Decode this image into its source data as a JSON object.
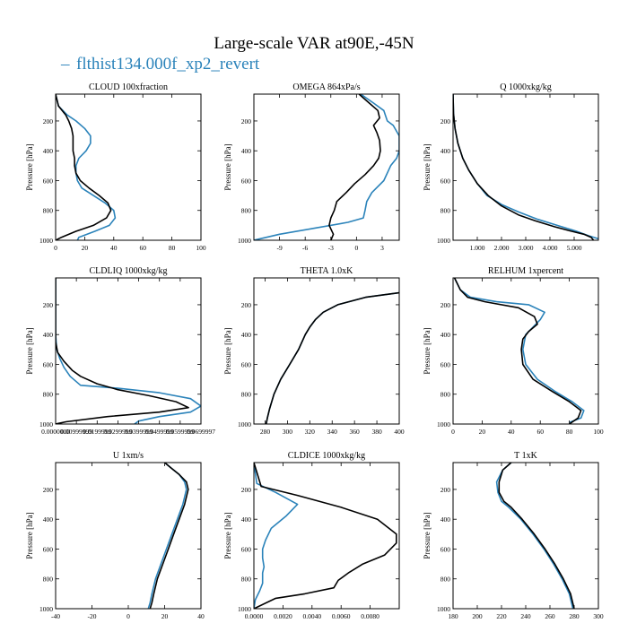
{
  "figure": {
    "title": "Large-scale VAR at90E,-45N",
    "legend": [
      {
        "name": "flthist134.000f_xp2_revert",
        "marker": "–",
        "color": "#2b83ba"
      }
    ],
    "series_colors": {
      "flthist134.000f_xp2_revert": "#2b83ba",
      "black": "#000000"
    }
  },
  "chart_data": [
    {
      "type": "line",
      "title": "CLOUD  100xfraction",
      "ylabel": "Pressure [hPa]",
      "xlim": [
        0,
        100
      ],
      "ylim": [
        1000,
        20
      ],
      "yticks": [
        200,
        400,
        600,
        800,
        1000
      ],
      "xticks": [
        0,
        20,
        40,
        60,
        80,
        100
      ],
      "xtick_labels": [
        "0",
        "20",
        "40",
        "60",
        "80",
        "100"
      ],
      "series": [
        {
          "name": "flthist134.000f_xp2_revert",
          "color": "#2b83ba",
          "x": [
            0,
            2,
            8,
            14,
            20,
            24,
            24,
            21,
            16,
            14,
            14,
            15,
            18,
            26,
            34,
            40,
            41,
            37,
            27,
            16,
            15
          ],
          "y": [
            20,
            100,
            160,
            200,
            250,
            300,
            350,
            400,
            450,
            500,
            550,
            600,
            650,
            700,
            750,
            800,
            850,
            900,
            940,
            980,
            1000
          ]
        },
        {
          "name": "",
          "color": "#000000",
          "x": [
            0,
            2,
            7,
            9,
            11,
            12,
            12,
            12,
            13,
            13,
            14,
            17,
            23,
            30,
            36,
            38,
            35,
            26,
            14,
            4,
            0
          ],
          "y": [
            20,
            100,
            160,
            200,
            250,
            300,
            350,
            400,
            450,
            500,
            550,
            600,
            650,
            700,
            750,
            800,
            850,
            900,
            940,
            980,
            1000
          ]
        }
      ]
    },
    {
      "type": "line",
      "title": "OMEGA  864xPa/s",
      "ylabel": "Pressure [hPa]",
      "xlim": [
        -12,
        5
      ],
      "ylim": [
        1000,
        20
      ],
      "yticks": [
        200,
        400,
        600,
        800,
        1000
      ],
      "xticks": [
        -9,
        -6,
        -3,
        0,
        3
      ],
      "xtick_labels": [
        "-9",
        "-6",
        "-3",
        "0",
        "3"
      ],
      "series": [
        {
          "name": "flthist134.000f_xp2_revert",
          "color": "#2b83ba",
          "x": [
            0.5,
            2.0,
            3.2,
            3.6,
            4.3,
            5.0,
            5.0,
            5.0,
            4.7,
            4.0,
            3.2,
            1.8,
            1.2,
            1.0,
            0.8,
            -1.0,
            -5.0,
            -9.0,
            -12.0
          ],
          "y": [
            20,
            80,
            130,
            200,
            230,
            300,
            350,
            400,
            450,
            500,
            600,
            680,
            740,
            800,
            850,
            880,
            920,
            960,
            1000
          ]
        },
        {
          "name": "",
          "color": "#000000",
          "x": [
            0.3,
            1.5,
            2.5,
            2.7,
            2.0,
            2.4,
            2.7,
            2.8,
            2.6,
            2.0,
            1.0,
            -0.2,
            -1.2,
            -2.3,
            -2.6,
            -3.0,
            -3.2,
            -2.7,
            -3.0
          ],
          "y": [
            20,
            80,
            130,
            180,
            230,
            280,
            330,
            400,
            450,
            500,
            560,
            620,
            680,
            740,
            800,
            850,
            900,
            960,
            1000
          ]
        }
      ]
    },
    {
      "type": "line",
      "title": "Q  1000xkg/kg",
      "ylabel": "Pressure [hPa]",
      "xlim": [
        0,
        6000
      ],
      "ylim": [
        1000,
        20
      ],
      "yticks": [
        200,
        400,
        600,
        800,
        1000
      ],
      "xticks": [
        1000,
        2000,
        3000,
        4000,
        5000
      ],
      "xtick_labels": [
        "1.000",
        "2.000",
        "3.000",
        "4.000",
        "5.000"
      ],
      "series": [
        {
          "name": "flthist134.000f_xp2_revert",
          "color": "#2b83ba",
          "x": [
            0,
            20,
            80,
            200,
            400,
            650,
            1000,
            1400,
            2000,
            2700,
            3500,
            4300,
            5100,
            5600,
            6000
          ],
          "y": [
            20,
            150,
            250,
            350,
            450,
            530,
            620,
            700,
            760,
            810,
            860,
            900,
            940,
            970,
            990
          ]
        },
        {
          "name": "",
          "color": "#000000",
          "x": [
            0,
            20,
            80,
            200,
            400,
            650,
            1000,
            1450,
            2000,
            2700,
            3400,
            4200,
            4900,
            5400,
            5700,
            5800
          ],
          "y": [
            20,
            150,
            250,
            350,
            450,
            530,
            620,
            700,
            770,
            830,
            870,
            910,
            940,
            960,
            980,
            1000
          ]
        }
      ]
    },
    {
      "type": "line",
      "title": "CLDLIQ  1000xkg/kg",
      "ylabel": "Pressure [hPa]",
      "xlim": [
        0,
        0.07
      ],
      "ylim": [
        1000,
        20
      ],
      "yticks": [
        200,
        400,
        600,
        800,
        1000
      ],
      "xticks": [
        0,
        0.01,
        0.02,
        0.03,
        0.04,
        0.05,
        0.06,
        0.07
      ],
      "xtick_labels": [
        "0.0000000",
        "0.00999999",
        "0.0199999",
        "0.0299999",
        "0.0399999",
        "0.0499999",
        "0.0599999",
        "0.0699997"
      ],
      "series": [
        {
          "name": "flthist134.000f_xp2_revert",
          "color": "#2b83ba",
          "x": [
            0,
            0,
            0.0005,
            0.002,
            0.004,
            0.007,
            0.012,
            0.03,
            0.05,
            0.065,
            0.07,
            0.065,
            0.05,
            0.04,
            0.038
          ],
          "y": [
            20,
            400,
            500,
            560,
            620,
            680,
            740,
            760,
            790,
            830,
            880,
            920,
            950,
            980,
            1000
          ]
        },
        {
          "name": "",
          "color": "#000000",
          "x": [
            0,
            0,
            0.001,
            0.004,
            0.008,
            0.012,
            0.02,
            0.03,
            0.045,
            0.058,
            0.064,
            0.05,
            0.025,
            0.005,
            0
          ],
          "y": [
            20,
            450,
            520,
            580,
            640,
            680,
            730,
            770,
            810,
            850,
            890,
            920,
            950,
            985,
            1000
          ]
        }
      ]
    },
    {
      "type": "line",
      "title": "THETA  1.0xK",
      "ylabel": "Pressure [hPa]",
      "xlim": [
        270,
        400
      ],
      "ylim": [
        1000,
        20
      ],
      "yticks": [
        200,
        400,
        600,
        800,
        1000
      ],
      "xticks": [
        280,
        300,
        320,
        340,
        360,
        380,
        400
      ],
      "xtick_labels": [
        "280",
        "300",
        "320",
        "340",
        "360",
        "380",
        "400"
      ],
      "series": [
        {
          "name": "flthist134.000f_xp2_revert",
          "color": "#2b83ba",
          "x": [
            400,
            370,
            345,
            332,
            325,
            320,
            316,
            310,
            302,
            294,
            288,
            284,
            282,
            281
          ],
          "y": [
            120,
            150,
            200,
            250,
            300,
            350,
            400,
            500,
            600,
            700,
            800,
            900,
            960,
            1000
          ]
        },
        {
          "name": "",
          "color": "#000000",
          "x": [
            400,
            370,
            345,
            332,
            325,
            320,
            316,
            310,
            302,
            294,
            288,
            284,
            282,
            281
          ],
          "y": [
            120,
            150,
            200,
            250,
            300,
            350,
            400,
            500,
            600,
            700,
            800,
            900,
            960,
            1000
          ]
        }
      ]
    },
    {
      "type": "line",
      "title": "RELHUM  1xpercent",
      "ylabel": "Pressure [hPa]",
      "xlim": [
        0,
        100
      ],
      "ylim": [
        1000,
        20
      ],
      "yticks": [
        200,
        400,
        600,
        800,
        1000
      ],
      "xticks": [
        0,
        20,
        40,
        60,
        80,
        100
      ],
      "xtick_labels": [
        "0",
        "20",
        "40",
        "60",
        "80",
        "100"
      ],
      "series": [
        {
          "name": "flthist134.000f_xp2_revert",
          "color": "#2b83ba",
          "x": [
            1,
            5,
            12,
            30,
            52,
            63,
            60,
            55,
            50,
            48,
            50,
            58,
            70,
            82,
            90,
            88,
            80
          ],
          "y": [
            20,
            100,
            150,
            180,
            200,
            250,
            300,
            350,
            400,
            500,
            600,
            700,
            780,
            850,
            910,
            960,
            990
          ]
        },
        {
          "name": "",
          "color": "#000000",
          "x": [
            1,
            5,
            10,
            22,
            45,
            56,
            58,
            52,
            48,
            47,
            48,
            55,
            68,
            80,
            88,
            86,
            80
          ],
          "y": [
            20,
            100,
            150,
            180,
            220,
            280,
            330,
            380,
            430,
            500,
            600,
            700,
            780,
            850,
            910,
            960,
            1000
          ]
        }
      ]
    },
    {
      "type": "line",
      "title": "U  1xm/s",
      "ylabel": "Pressure [hPa]",
      "xlim": [
        -40,
        40
      ],
      "ylim": [
        1000,
        20
      ],
      "yticks": [
        200,
        400,
        600,
        800,
        1000
      ],
      "xticks": [
        -40,
        -20,
        0,
        20,
        40
      ],
      "xtick_labels": [
        "-40",
        "-20",
        "0",
        "20",
        "40"
      ],
      "series": [
        {
          "name": "flthist134.000f_xp2_revert",
          "color": "#2b83ba",
          "x": [
            20,
            24,
            28,
            31,
            32,
            30,
            27,
            24,
            21,
            18,
            15,
            13,
            12,
            11
          ],
          "y": [
            20,
            60,
            100,
            150,
            200,
            300,
            400,
            500,
            600,
            700,
            800,
            900,
            960,
            1000
          ]
        },
        {
          "name": "",
          "color": "#000000",
          "x": [
            20,
            24,
            28,
            32,
            33,
            31,
            28,
            25,
            22,
            19,
            16,
            14,
            13,
            12
          ],
          "y": [
            20,
            60,
            100,
            150,
            200,
            300,
            400,
            500,
            600,
            700,
            800,
            900,
            960,
            1000
          ]
        }
      ]
    },
    {
      "type": "line",
      "title": "CLDICE  1000xkg/kg",
      "ylabel": "Pressure [hPa]",
      "xlim": [
        0,
        0.01
      ],
      "ylim": [
        1000,
        20
      ],
      "yticks": [
        200,
        400,
        600,
        800,
        1000
      ],
      "xticks": [
        0,
        0.002,
        0.004,
        0.006,
        0.008
      ],
      "xtick_labels": [
        "0.0000",
        "0.0020",
        "0.0040",
        "0.0060",
        "0.0080"
      ],
      "series": [
        {
          "name": "flthist134.000f_xp2_revert",
          "color": "#2b83ba",
          "x": [
            0,
            0.0002,
            0.0015,
            0.003,
            0.0022,
            0.0012,
            0.0008,
            0.0006,
            0.0006,
            0.0007,
            0.0006,
            0.0006,
            0.0004,
            0.0001,
            0
          ],
          "y": [
            20,
            160,
            220,
            300,
            380,
            460,
            540,
            600,
            660,
            720,
            760,
            830,
            880,
            940,
            1000
          ]
        },
        {
          "name": "",
          "color": "#000000",
          "x": [
            0,
            0.0005,
            0.003,
            0.006,
            0.0085,
            0.0098,
            0.0098,
            0.009,
            0.0075,
            0.0065,
            0.0058,
            0.0055,
            0.0035,
            0.0015,
            0
          ],
          "y": [
            20,
            180,
            240,
            320,
            400,
            500,
            560,
            640,
            700,
            760,
            810,
            860,
            900,
            930,
            1000
          ]
        }
      ]
    },
    {
      "type": "line",
      "title": "T  1xK",
      "ylabel": "Pressure [hPa]",
      "xlim": [
        180,
        300
      ],
      "ylim": [
        1000,
        20
      ],
      "yticks": [
        200,
        400,
        600,
        800,
        1000
      ],
      "xticks": [
        180,
        200,
        220,
        240,
        260,
        280,
        300
      ],
      "xtick_labels": [
        "180",
        "200",
        "220",
        "240",
        "260",
        "280",
        "300"
      ],
      "series": [
        {
          "name": "flthist134.000f_xp2_revert",
          "color": "#2b83ba",
          "x": [
            228,
            221,
            216,
            217,
            220,
            226,
            236,
            246,
            255,
            263,
            270,
            276,
            279
          ],
          "y": [
            20,
            70,
            150,
            220,
            280,
            320,
            400,
            500,
            600,
            700,
            800,
            900,
            1000
          ]
        },
        {
          "name": "",
          "color": "#000000",
          "x": [
            228,
            221,
            218,
            218,
            222,
            228,
            237,
            247,
            256,
            264,
            271,
            277,
            280
          ],
          "y": [
            20,
            70,
            150,
            220,
            280,
            320,
            400,
            500,
            600,
            700,
            800,
            900,
            1000
          ]
        }
      ]
    }
  ]
}
